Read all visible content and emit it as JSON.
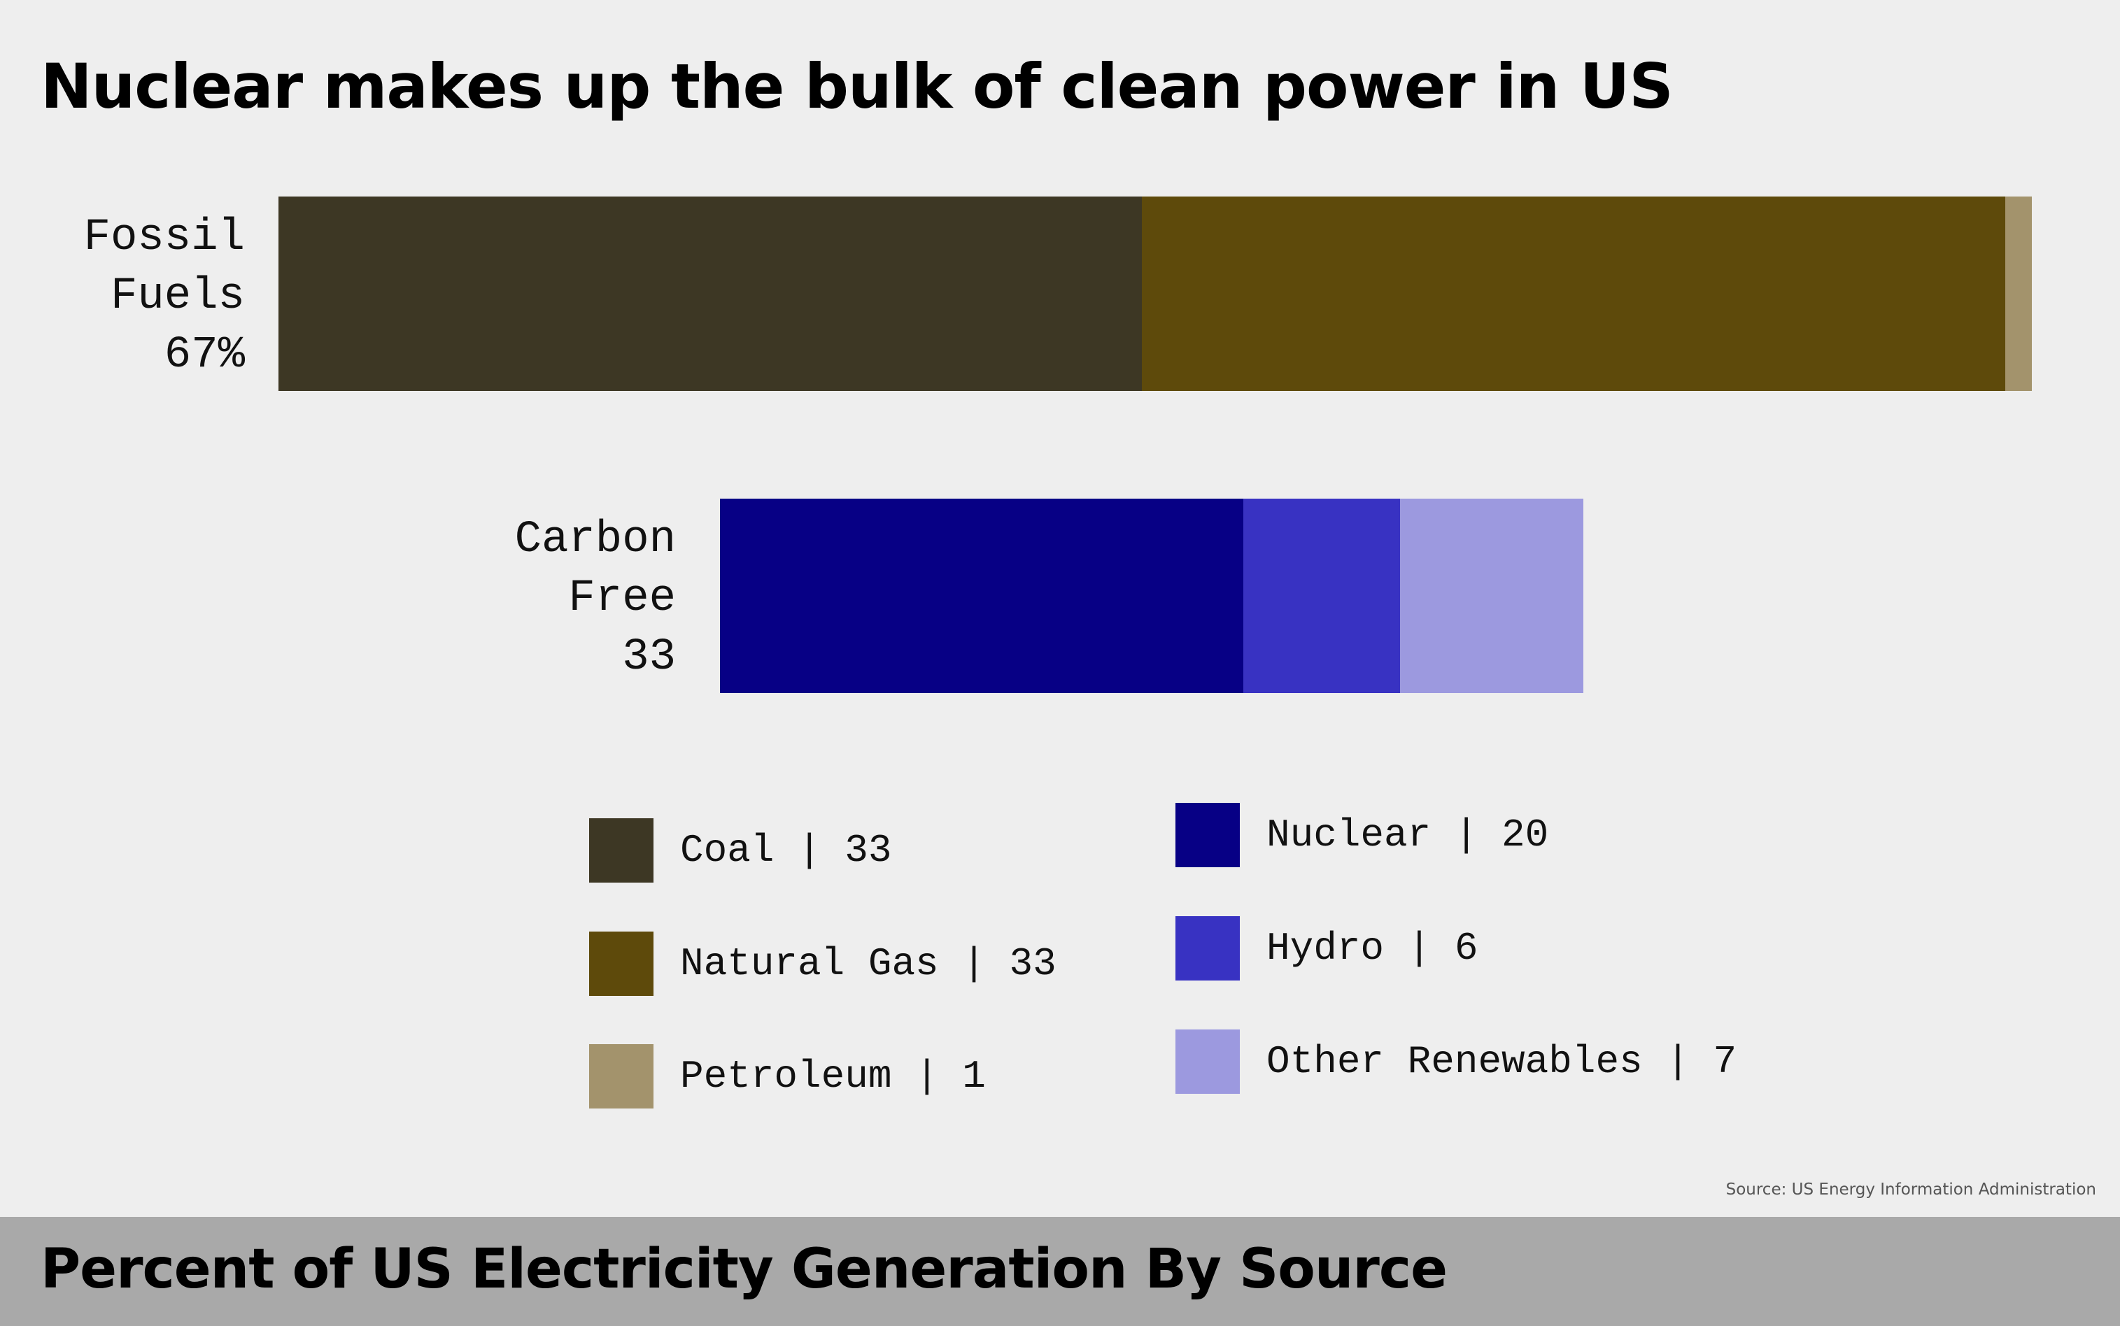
{
  "title": "Nuclear makes up the bulk of clean power in US",
  "footer_title": "Percent of US Electricity Generation By Source",
  "source": "Source: US Energy Information Administration",
  "rows": [
    {
      "label_lines": [
        "Fossil",
        "Fuels",
        "67%"
      ]
    },
    {
      "label_lines": [
        "Carbon",
        "Free",
        "33"
      ]
    }
  ],
  "legend": [
    {
      "text": "Coal | 33"
    },
    {
      "text": "Natural Gas | 33"
    },
    {
      "text": "Petroleum | 1"
    },
    {
      "text": "Nuclear | 20"
    },
    {
      "text": "Hydro | 6"
    },
    {
      "text": "Other Renewables | 7"
    }
  ],
  "chart_data": {
    "type": "bar",
    "orientation": "horizontal",
    "stacked": true,
    "categories": [
      "Fossil Fuels",
      "Carbon Free"
    ],
    "series": [
      {
        "name": "Coal",
        "category": "Fossil Fuels",
        "value": 33,
        "color": "#3d3724"
      },
      {
        "name": "Natural Gas",
        "category": "Fossil Fuels",
        "value": 33,
        "color": "#5e4a0b"
      },
      {
        "name": "Petroleum",
        "category": "Fossil Fuels",
        "value": 1,
        "color": "#a3936c"
      },
      {
        "name": "Nuclear",
        "category": "Carbon Free",
        "value": 20,
        "color": "#070085"
      },
      {
        "name": "Hydro",
        "category": "Carbon Free",
        "value": 6,
        "color": "#3832c2"
      },
      {
        "name": "Other Renewables",
        "category": "Carbon Free",
        "value": 7,
        "color": "#9c99df"
      }
    ],
    "totals": {
      "Fossil Fuels": 67,
      "Carbon Free": 33
    },
    "title": "Nuclear makes up the bulk of clean power in US",
    "xlabel": "",
    "ylabel": "",
    "grid": false,
    "legend_position": "bottom"
  }
}
